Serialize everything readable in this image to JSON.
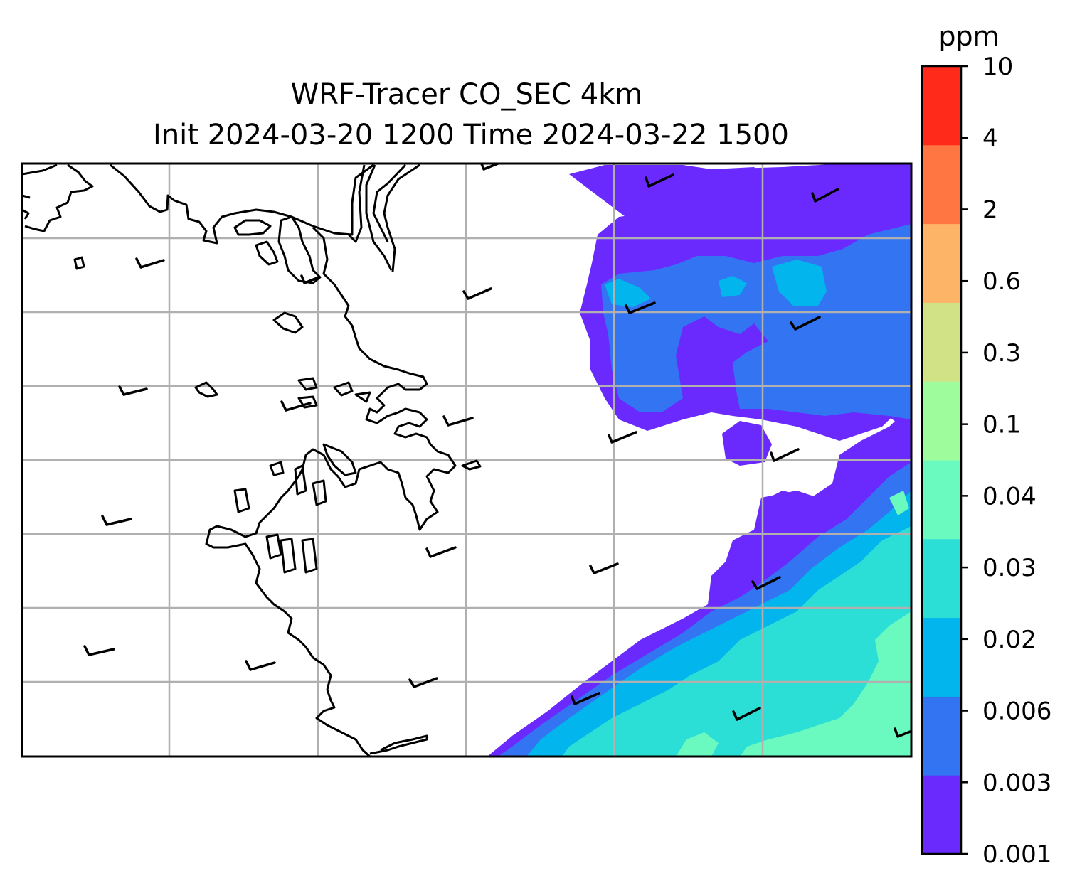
{
  "title": {
    "line1": "WRF-Tracer CO_SEC 4km",
    "line2": "Init 2024-03-20 1200 Time 2024-03-22 1500"
  },
  "colorbar": {
    "unit": "ppm",
    "ticks": [
      "0.001",
      "0.003",
      "0.006",
      "0.02",
      "0.03",
      "0.04",
      "0.1",
      "0.3",
      "0.6",
      "2",
      "4",
      "10"
    ],
    "colors": [
      "#6a2afe",
      "#3374f2",
      "#02b5ec",
      "#2cdfd6",
      "#6afac0",
      "#9ffc9d",
      "#d1e186",
      "#fdb466",
      "#ff7643",
      "#ff2a19"
    ]
  },
  "map": {
    "background": "#ffffff",
    "gridline_color": "#b0b0b0",
    "coastline_color": "#000000",
    "wind_barb_count": 23
  }
}
